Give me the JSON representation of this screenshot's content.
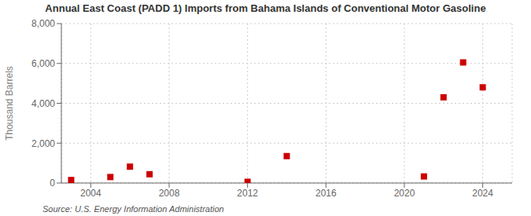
{
  "chart_data": {
    "type": "scatter",
    "title": "Annual East Coast (PADD 1) Imports from Bahama Islands of Conventional Motor Gasoline",
    "ylabel": "Thousand Barrels",
    "annotations": [
      "Source: U.S. Energy Information Administration"
    ],
    "x": [
      2003,
      2005,
      2006,
      2007,
      2012,
      2014,
      2021,
      2022,
      2023,
      2024
    ],
    "values": [
      150,
      300,
      820,
      440,
      60,
      1350,
      330,
      4300,
      6050,
      4800
    ],
    "color": "#cc0000",
    "marker": "square",
    "xlim": [
      2002.5,
      2025.5
    ],
    "xticks": [
      2004,
      2008,
      2012,
      2016,
      2020,
      2024
    ],
    "ylim": [
      0,
      8000
    ],
    "yticks": [
      0,
      {
        "value": 2000,
        "label": "2,000"
      },
      {
        "value": 4000,
        "label": "4,000"
      },
      {
        "value": 6000,
        "label": "6,000"
      },
      {
        "value": 8000,
        "label": "8,000"
      }
    ],
    "grid": true
  }
}
